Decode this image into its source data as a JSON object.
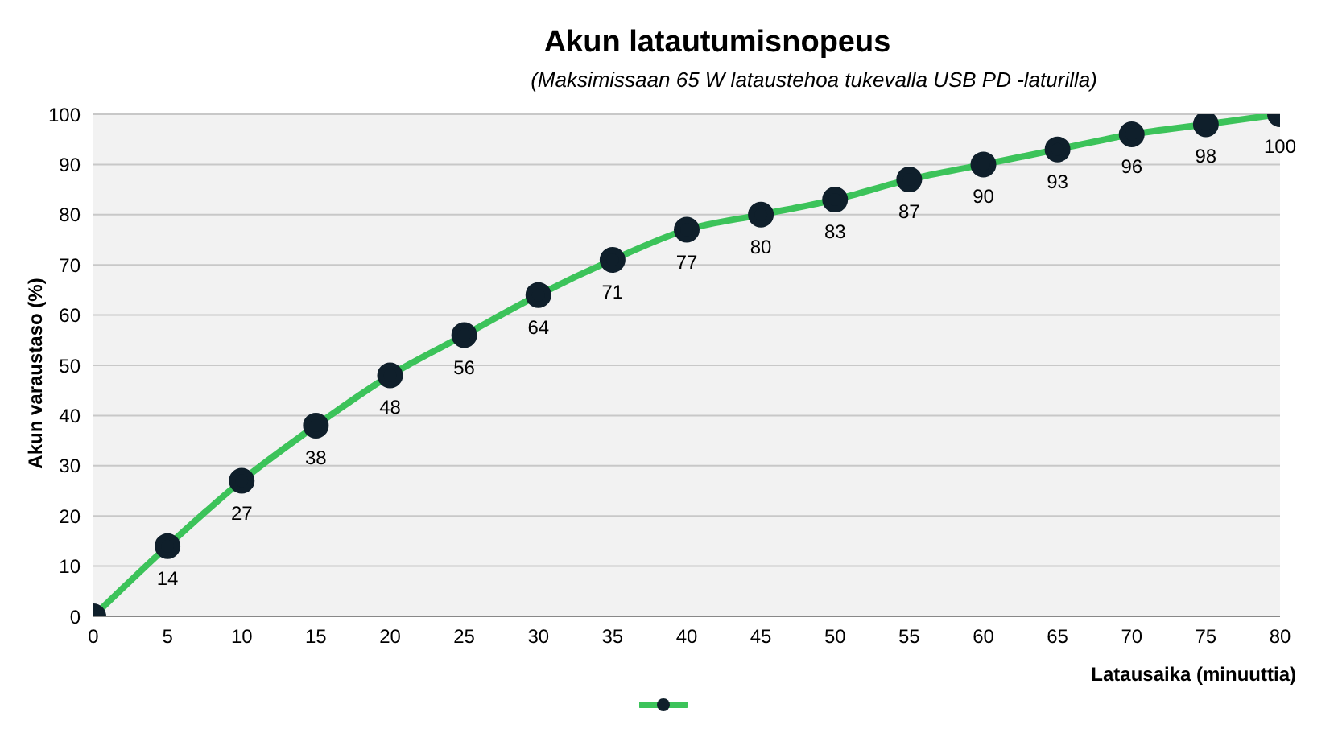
{
  "chart_data": {
    "type": "line",
    "title": "Akun latautumisnopeus",
    "subtitle": "(Maksimissaan 65 W lataustehoa tukevalla USB PD -laturilla)",
    "xlabel": "Latausaika (minuuttia)",
    "ylabel": "Akun varaustaso (%)",
    "x": [
      0,
      5,
      10,
      15,
      20,
      25,
      30,
      35,
      40,
      45,
      50,
      55,
      60,
      65,
      70,
      75,
      80
    ],
    "series": [
      {
        "color": "#3cc35a",
        "values": [
          0,
          14,
          27,
          38,
          48,
          56,
          64,
          71,
          77,
          80,
          83,
          87,
          90,
          93,
          96,
          98,
          100
        ],
        "value_labels": [
          null,
          "14",
          "27",
          "38",
          "48",
          "56",
          "64",
          "71",
          "77",
          "80",
          "83",
          "87",
          "90",
          "93",
          "96",
          "98",
          "100"
        ]
      }
    ],
    "xlim": [
      0,
      80
    ],
    "xticks": [
      0,
      5,
      10,
      15,
      20,
      25,
      30,
      35,
      40,
      45,
      50,
      55,
      60,
      65,
      70,
      75,
      80
    ],
    "ylim": [
      0,
      100
    ],
    "yticks": [
      0,
      10,
      20,
      30,
      40,
      50,
      60,
      70,
      80,
      90,
      100
    ],
    "grid": "y",
    "marker": "circle",
    "line_style": "solid"
  }
}
